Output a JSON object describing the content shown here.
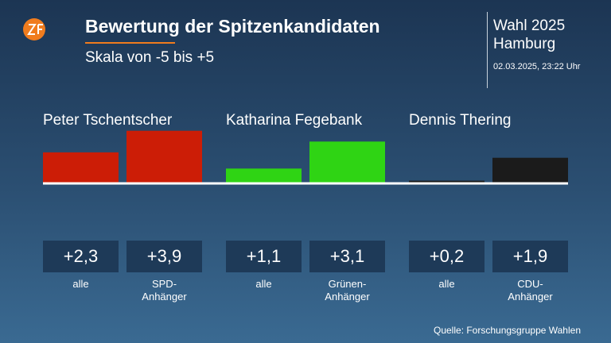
{
  "chart_data": {
    "type": "bar",
    "title": "Bewertung der Spitzenkandidaten",
    "subtitle": "Skala von -5 bis +5",
    "ylim": [
      0,
      5
    ],
    "groups": [
      {
        "name": "Peter Tschentscher",
        "color": "#cc1d06",
        "categories": [
          "alle",
          "SPD-\nAnhänger"
        ],
        "values": [
          2.3,
          3.9
        ],
        "value_labels": [
          "+2,3",
          "+3,9"
        ]
      },
      {
        "name": "Katharina Fegebank",
        "color": "#2fd414",
        "categories": [
          "alle",
          "Grünen-\nAnhänger"
        ],
        "values": [
          1.1,
          3.1
        ],
        "value_labels": [
          "+1,1",
          "+3,1"
        ]
      },
      {
        "name": "Dennis Thering",
        "color": "#1b1b1b",
        "categories": [
          "alle",
          "CDU-\nAnhänger"
        ],
        "values": [
          0.2,
          1.9
        ],
        "value_labels": [
          "+0,2",
          "+1,9"
        ]
      }
    ]
  },
  "header": {
    "election": "Wahl 2025",
    "region": "Hamburg",
    "timestamp": "02.03.2025, 23:22 Uhr"
  },
  "source": "Quelle: Forschungsgruppe Wahlen"
}
